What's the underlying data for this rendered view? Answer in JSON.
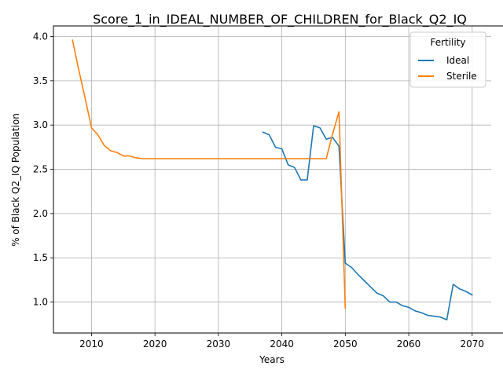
{
  "chart_data": {
    "type": "line",
    "title": "Score_1_in_IDEAL_NUMBER_OF_CHILDREN_for_Black_Q2_IQ",
    "xlabel": "Years",
    "ylabel": "% of Black Q2_IQ Population",
    "xlim": [
      2004,
      2073
    ],
    "ylim": [
      0.65,
      4.12
    ],
    "xticks": [
      2010,
      2020,
      2030,
      2040,
      2050,
      2060,
      2070
    ],
    "yticks": [
      1.0,
      1.5,
      2.0,
      2.5,
      3.0,
      3.5,
      4.0
    ],
    "xtick_labels": [
      "2010",
      "2020",
      "2030",
      "2040",
      "2050",
      "2060",
      "2070"
    ],
    "ytick_labels": [
      "1.0",
      "1.5",
      "2.0",
      "2.5",
      "3.0",
      "3.5",
      "4.0"
    ],
    "grid": true,
    "legend": {
      "title": "Fertility",
      "placement": "top-right"
    },
    "series": [
      {
        "name": "Ideal",
        "color": "#1f77b4",
        "x": [
          2037,
          2038,
          2039,
          2040,
          2041,
          2042,
          2043,
          2044,
          2045,
          2046,
          2047,
          2048,
          2049,
          2050,
          2051,
          2052,
          2053,
          2054,
          2055,
          2056,
          2057,
          2058,
          2059,
          2060,
          2061,
          2062,
          2063,
          2064,
          2065,
          2066,
          2067,
          2068,
          2069,
          2070
        ],
        "y": [
          2.92,
          2.89,
          2.75,
          2.73,
          2.55,
          2.52,
          2.38,
          2.38,
          2.99,
          2.97,
          2.84,
          2.86,
          2.76,
          1.44,
          1.39,
          1.31,
          1.24,
          1.17,
          1.1,
          1.07,
          1.0,
          1.0,
          0.96,
          0.94,
          0.9,
          0.88,
          0.85,
          0.84,
          0.83,
          0.8,
          1.2,
          1.15,
          1.12,
          1.08
        ]
      },
      {
        "name": "Sterile",
        "color": "#ff7f0e",
        "x": [
          2007,
          2008,
          2009,
          2010,
          2011,
          2012,
          2013,
          2014,
          2015,
          2016,
          2017,
          2018,
          2019,
          2020,
          2025,
          2030,
          2035,
          2040,
          2045,
          2047,
          2048,
          2049,
          2050
        ],
        "y": [
          3.96,
          3.62,
          3.3,
          2.97,
          2.89,
          2.77,
          2.71,
          2.69,
          2.65,
          2.65,
          2.63,
          2.62,
          2.62,
          2.62,
          2.62,
          2.62,
          2.62,
          2.62,
          2.62,
          2.62,
          2.9,
          3.15,
          0.93
        ]
      }
    ]
  }
}
